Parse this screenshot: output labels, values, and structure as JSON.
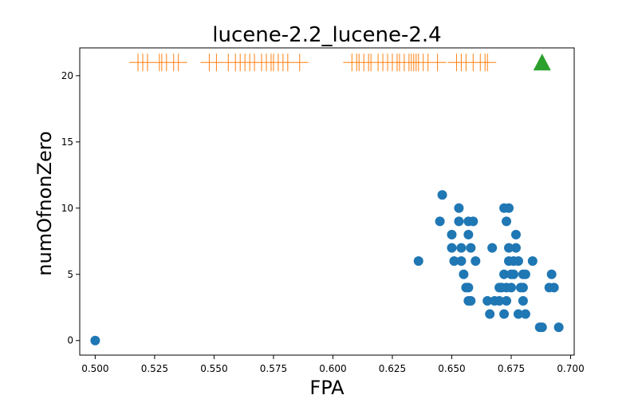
{
  "chart_data": {
    "type": "scatter",
    "title": "lucene-2.2_lucene-2.4",
    "xlabel": "FPA",
    "ylabel": "numOfnonZero",
    "xlim": [
      0.4935,
      0.7015
    ],
    "ylim": [
      -1.1,
      22.1
    ],
    "xticks": [
      0.5,
      0.525,
      0.55,
      0.575,
      0.6,
      0.625,
      0.65,
      0.675,
      0.7
    ],
    "xtick_labels": [
      "0.500",
      "0.525",
      "0.550",
      "0.575",
      "0.600",
      "0.625",
      "0.650",
      "0.675",
      "0.700"
    ],
    "yticks": [
      0,
      5,
      10,
      15,
      20
    ],
    "ytick_labels": [
      "0",
      "5",
      "10",
      "15",
      "20"
    ],
    "grid": false,
    "colors": {
      "scatter": "#1f77b4",
      "rug": "#ff7f0e",
      "marker": "#2ca02c"
    },
    "series": [
      {
        "marker": "circle",
        "points": [
          [
            0.5,
            0
          ],
          [
            0.636,
            6
          ],
          [
            0.645,
            9
          ],
          [
            0.646,
            11
          ],
          [
            0.65,
            8
          ],
          [
            0.65,
            7
          ],
          [
            0.651,
            6
          ],
          [
            0.653,
            10
          ],
          [
            0.653,
            9
          ],
          [
            0.654,
            7
          ],
          [
            0.654,
            6
          ],
          [
            0.655,
            5
          ],
          [
            0.656,
            4
          ],
          [
            0.657,
            3
          ],
          [
            0.657,
            4
          ],
          [
            0.657,
            9
          ],
          [
            0.657,
            8
          ],
          [
            0.658,
            7
          ],
          [
            0.659,
            9
          ],
          [
            0.658,
            3
          ],
          [
            0.66,
            6
          ],
          [
            0.665,
            3
          ],
          [
            0.666,
            2
          ],
          [
            0.667,
            7
          ],
          [
            0.668,
            3
          ],
          [
            0.67,
            4
          ],
          [
            0.67,
            3
          ],
          [
            0.671,
            4
          ],
          [
            0.672,
            5
          ],
          [
            0.672,
            2
          ],
          [
            0.672,
            10
          ],
          [
            0.673,
            9
          ],
          [
            0.673,
            3
          ],
          [
            0.673,
            4
          ],
          [
            0.674,
            10
          ],
          [
            0.674,
            6
          ],
          [
            0.674,
            7
          ],
          [
            0.675,
            5
          ],
          [
            0.675,
            4
          ],
          [
            0.676,
            5
          ],
          [
            0.676,
            6
          ],
          [
            0.677,
            7
          ],
          [
            0.677,
            8
          ],
          [
            0.678,
            6
          ],
          [
            0.678,
            2
          ],
          [
            0.679,
            4
          ],
          [
            0.68,
            5
          ],
          [
            0.68,
            3
          ],
          [
            0.68,
            4
          ],
          [
            0.681,
            2
          ],
          [
            0.681,
            5
          ],
          [
            0.684,
            6
          ],
          [
            0.687,
            1
          ],
          [
            0.688,
            1
          ],
          [
            0.691,
            4
          ],
          [
            0.692,
            5
          ],
          [
            0.693,
            4
          ],
          [
            0.695,
            1
          ]
        ]
      },
      {
        "marker": "vline",
        "y": 21,
        "x": [
          0.518,
          0.52,
          0.522,
          0.527,
          0.528,
          0.53,
          0.533,
          0.535,
          0.548,
          0.551,
          0.556,
          0.559,
          0.561,
          0.563,
          0.565,
          0.567,
          0.57,
          0.572,
          0.574,
          0.575,
          0.577,
          0.579,
          0.581,
          0.586,
          0.608,
          0.61,
          0.611,
          0.613,
          0.615,
          0.616,
          0.619,
          0.621,
          0.623,
          0.625,
          0.627,
          0.628,
          0.63,
          0.632,
          0.633,
          0.634,
          0.635,
          0.636,
          0.638,
          0.64,
          0.644,
          0.652,
          0.654,
          0.656,
          0.659,
          0.662,
          0.664,
          0.665
        ]
      },
      {
        "marker": "triangle",
        "points": [
          [
            0.688,
            21
          ]
        ]
      }
    ]
  }
}
